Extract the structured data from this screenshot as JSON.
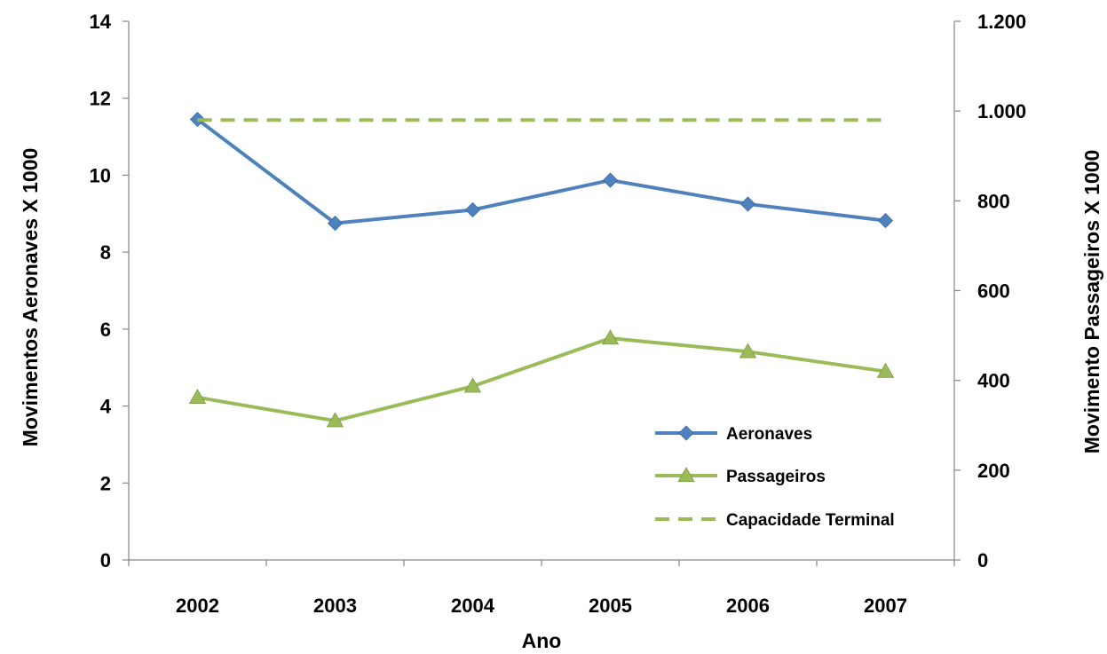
{
  "chart_data": {
    "type": "line",
    "title": "",
    "xlabel": "Ano",
    "ylabel_left": "Movimentos Aeronaves X 1000",
    "ylabel_right": "Movimento Passageiros X 1000",
    "categories": [
      "2002",
      "2003",
      "2004",
      "2005",
      "2006",
      "2007"
    ],
    "y_left": {
      "range": [
        0,
        14
      ],
      "ticks": [
        0,
        2,
        4,
        6,
        8,
        10,
        12,
        14
      ],
      "tick_labels": [
        "0",
        "2",
        "4",
        "6",
        "8",
        "10",
        "12",
        "14"
      ]
    },
    "y_right": {
      "range": [
        0,
        1200
      ],
      "ticks": [
        0,
        200,
        400,
        600,
        800,
        1000,
        1200
      ],
      "tick_labels": [
        "0",
        "200",
        "400",
        "600",
        "800",
        "1.000",
        "1.200"
      ]
    },
    "series": [
      {
        "name": "Aeronaves",
        "axis": "left",
        "color": "#4F81BD",
        "marker": "diamond",
        "style": "solid",
        "values": [
          11.45,
          8.75,
          9.1,
          9.87,
          9.25,
          8.82
        ]
      },
      {
        "name": "Passageiros",
        "axis": "right",
        "color": "#9BBB59",
        "marker": "triangle",
        "style": "solid",
        "values": [
          362,
          310,
          387,
          494,
          464,
          420
        ]
      },
      {
        "name": "Capacidade Terminal",
        "axis": "right",
        "color": "#9BBB59",
        "marker": "none",
        "style": "dashed",
        "values": [
          980,
          980,
          980,
          980,
          980,
          980
        ]
      }
    ],
    "legend_position": "bottom-right",
    "grid": false
  }
}
